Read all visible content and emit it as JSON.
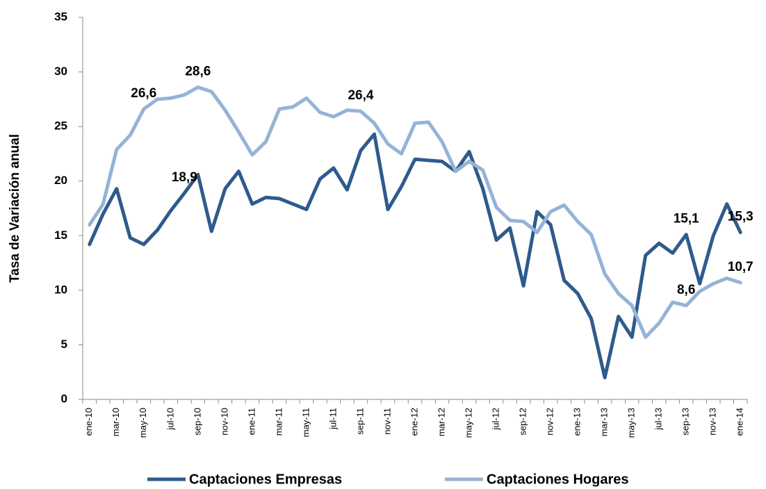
{
  "chart_data": {
    "type": "line",
    "y_label": "Tasa de Variación anual",
    "categories": [
      "ene-10",
      null,
      "mar-10",
      null,
      "may-10",
      null,
      "jul-10",
      null,
      "sep-10",
      null,
      "nov-10",
      null,
      "ene-11",
      null,
      "mar-11",
      null,
      "may-11",
      null,
      "jul-11",
      null,
      "sep-11",
      null,
      "nov-11",
      null,
      "ene-12",
      null,
      "mar-12",
      null,
      "may-12",
      null,
      "jul-12",
      null,
      "sep-12",
      null,
      "nov-12",
      null,
      "ene-13",
      null,
      "mar-13",
      null,
      "may-13",
      null,
      "jul-13",
      null,
      "sep-13",
      null,
      "nov-13",
      null,
      "ene-14"
    ],
    "series": [
      {
        "name": "Captaciones Empresas",
        "color": "#2e5b8c",
        "values": [
          14.2,
          17.0,
          19.3,
          14.8,
          14.2,
          15.5,
          17.3,
          18.9,
          20.6,
          15.4,
          19.3,
          20.9,
          17.9,
          18.5,
          18.4,
          17.9,
          17.4,
          20.2,
          21.2,
          19.2,
          22.8,
          24.3,
          17.4,
          19.5,
          22.0,
          21.9,
          21.8,
          20.9,
          22.7,
          19.3,
          14.6,
          15.7,
          10.4,
          17.2,
          16.0,
          10.9,
          9.7,
          7.4,
          2.0,
          7.6,
          5.7,
          13.2,
          14.3,
          13.4,
          15.1,
          10.6,
          15.0,
          17.9,
          15.3
        ],
        "value_labels": [
          null,
          null,
          null,
          null,
          null,
          null,
          null,
          "18,9",
          null,
          null,
          null,
          null,
          null,
          null,
          null,
          null,
          null,
          null,
          null,
          null,
          null,
          null,
          null,
          null,
          null,
          null,
          null,
          null,
          null,
          null,
          null,
          null,
          null,
          null,
          null,
          null,
          null,
          null,
          null,
          null,
          null,
          null,
          null,
          null,
          "15,1",
          null,
          null,
          null,
          "15,3"
        ]
      },
      {
        "name": "Captaciones Hogares",
        "color": "#95b3d7",
        "values": [
          16.0,
          17.9,
          22.9,
          24.2,
          26.6,
          27.5,
          27.6,
          27.9,
          28.6,
          28.2,
          26.5,
          24.5,
          22.4,
          23.6,
          26.6,
          26.8,
          27.6,
          26.3,
          25.9,
          26.5,
          26.4,
          25.3,
          23.4,
          22.5,
          25.3,
          25.4,
          23.6,
          20.9,
          21.8,
          21.0,
          17.6,
          16.4,
          16.3,
          15.3,
          17.2,
          17.8,
          16.3,
          15.1,
          11.5,
          9.7,
          8.6,
          5.7,
          7.0,
          8.9,
          8.6,
          9.9,
          10.6,
          11.1,
          10.7
        ],
        "value_labels": [
          null,
          null,
          null,
          null,
          "26,6",
          null,
          null,
          null,
          "28,6",
          null,
          null,
          null,
          null,
          null,
          null,
          null,
          null,
          null,
          null,
          null,
          "26,4",
          null,
          null,
          null,
          null,
          null,
          null,
          null,
          null,
          null,
          null,
          null,
          null,
          null,
          null,
          null,
          null,
          null,
          null,
          null,
          null,
          null,
          null,
          null,
          "8,6",
          null,
          null,
          null,
          "10,7"
        ]
      }
    ],
    "ylim": [
      0,
      35
    ],
    "yticks": [
      0,
      5,
      10,
      15,
      20,
      25,
      30,
      35
    ],
    "grid": false,
    "legend": "bottom"
  }
}
